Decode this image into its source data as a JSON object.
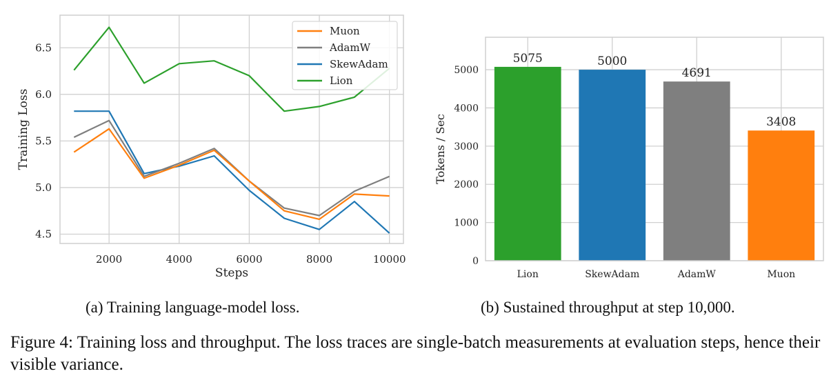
{
  "chart_data": [
    {
      "type": "line",
      "title": "",
      "xlabel": "Steps",
      "ylabel": "Training Loss",
      "x": [
        1000,
        2000,
        3000,
        4000,
        5000,
        6000,
        7000,
        8000,
        9000,
        10000
      ],
      "xlim": [
        600,
        10400
      ],
      "ylim": [
        4.4,
        6.85
      ],
      "xticks": [
        2000,
        4000,
        6000,
        8000,
        10000
      ],
      "xtick_labels": [
        "2000",
        "4000",
        "6000",
        "8000",
        "10000"
      ],
      "yticks": [
        4.5,
        5.0,
        5.5,
        6.0,
        6.5
      ],
      "ytick_labels": [
        "4.5",
        "5.0",
        "5.5",
        "6.0",
        "6.5"
      ],
      "grid": true,
      "legend": "top-right",
      "series": [
        {
          "name": "Muon",
          "color": "#ff7f0e",
          "values": [
            5.38,
            5.63,
            5.1,
            5.24,
            5.4,
            5.07,
            4.75,
            4.66,
            4.93,
            4.91
          ]
        },
        {
          "name": "AdamW",
          "color": "#7f7f7f",
          "values": [
            5.54,
            5.72,
            5.12,
            5.26,
            5.42,
            5.07,
            4.78,
            4.7,
            4.96,
            5.12
          ]
        },
        {
          "name": "SkewAdam",
          "color": "#1f77b4",
          "values": [
            5.82,
            5.82,
            5.15,
            5.23,
            5.34,
            4.97,
            4.67,
            4.55,
            4.85,
            4.51
          ]
        },
        {
          "name": "Lion",
          "color": "#2ca02c",
          "values": [
            6.26,
            6.72,
            6.12,
            6.33,
            6.36,
            6.2,
            5.82,
            5.87,
            5.97,
            6.28
          ]
        }
      ]
    },
    {
      "type": "bar",
      "title": "",
      "xlabel": "",
      "ylabel": "Tokens / Sec",
      "categories": [
        "Lion",
        "SkewAdam",
        "AdamW",
        "Muon"
      ],
      "values": [
        5075,
        5000,
        4691,
        3408
      ],
      "data_labels": [
        "5075",
        "5000",
        "4691",
        "3408"
      ],
      "colors": [
        "#2ca02c",
        "#1f77b4",
        "#7f7f7f",
        "#ff7f0e"
      ],
      "ylim": [
        0,
        5850
      ],
      "yticks": [
        0,
        1000,
        2000,
        3000,
        4000,
        5000
      ],
      "ytick_labels": [
        "0",
        "1000",
        "2000",
        "3000",
        "4000",
        "5000"
      ],
      "grid": true
    }
  ],
  "captions": {
    "a": "(a) Training language-model loss.",
    "b": "(b) Sustained throughput at step 10,000.",
    "figure": "Figure 4: Training loss and throughput. The loss traces are single-batch measurements at evaluation steps, hence their visible variance."
  }
}
